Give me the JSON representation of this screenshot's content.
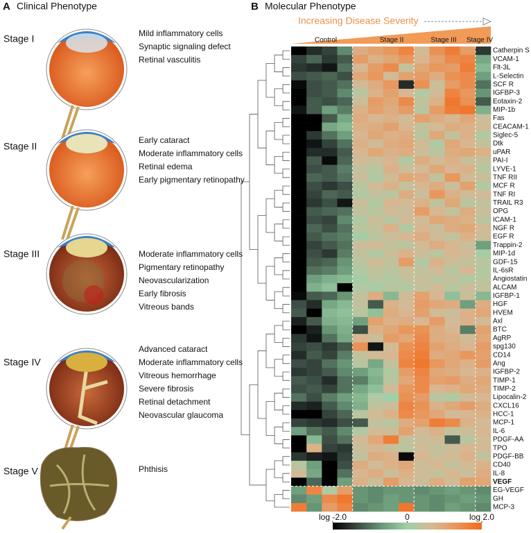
{
  "panel_a": {
    "letter": "A",
    "title": "Clinical Phenotype",
    "stages": [
      {
        "label": "Stage I",
        "findings": [
          "Mild inflammatory cells",
          "Synaptic signaling defect",
          "Retinal vasculitis"
        ]
      },
      {
        "label": "Stage II",
        "findings": [
          "Early cataract",
          "Moderate inflammatory cells",
          "Retinal edema",
          "Early pigmentary retinopathy"
        ]
      },
      {
        "label": "Stage III",
        "findings": [
          "Moderate inflammatory cells",
          "Pigmentary retinopathy",
          "Neovascularization",
          "Early fibrosis",
          "Vitreous bands"
        ]
      },
      {
        "label": "Stage IV",
        "findings": [
          "Advanced cataract",
          "Moderate inflammatory cells",
          "Vitreous hemorrhage",
          "Severe fibrosis",
          "Retinal detachment",
          "Neovascular glaucoma"
        ]
      },
      {
        "label": "Stage V",
        "findings": [
          "Phthisis"
        ]
      }
    ]
  },
  "chart_data": {
    "type": "heatmap",
    "letter": "B",
    "title": "Molecular Phenotype",
    "annotation": "Increasing Disease Severity",
    "groups": [
      "Control",
      "Stage II",
      "Stage III",
      "Stage IV"
    ],
    "rows": [
      "Catherpin S",
      "VCAM-1",
      "Flt-3L",
      "L-Selectin",
      "SCF R",
      "IGFBP-3",
      "Eotaxin-2",
      "MIP-1b",
      "Fas",
      "CEACAM-1",
      "Siglec-5",
      "Dtk",
      "uPAR",
      "PAI-I",
      "LYVE-1",
      "TNF RII",
      "MCF R",
      "TNF RI",
      "TRAIL R3",
      "OPG",
      "ICAM-1",
      "NGF R",
      "EGF R",
      "Trappin-2",
      "MIP-1d",
      "GDF-15",
      "IL-6sR",
      "Angiostatin",
      "ALCAM",
      "IGFBP-1",
      "HGF",
      "HVEM",
      "Axl",
      "BTC",
      "AgRP",
      "spg130",
      "CD14",
      "Ang",
      "IGFBP-2",
      "TIMP-1",
      "TIMP-2",
      "Lipocalin-2",
      "CXCL16",
      "HCC-1",
      "MCP-1",
      "IL-6",
      "PDGF-AA",
      "TPO",
      "PDGF-BB",
      "CD40",
      "IL-8",
      "VEGF",
      "EG-VEGF",
      "GH",
      "MCP-3"
    ],
    "values": [
      [
        -2,
        -1.6,
        -1.4,
        -0.8,
        0.9,
        1.1,
        1.3,
        1.6,
        0.6,
        1.4,
        1.7,
        1.2,
        -1.5
      ],
      [
        -1.4,
        -1.1,
        -1.5,
        -1.2,
        1.2,
        0.8,
        1.0,
        1.3,
        0.7,
        1.1,
        1.5,
        1.6,
        -0.5
      ],
      [
        -1.5,
        -1.6,
        -1.8,
        -1.0,
        0.7,
        1.2,
        1.5,
        0.4,
        1.0,
        1.3,
        1.2,
        1.7,
        -0.3
      ],
      [
        -1.3,
        -1.2,
        -1.1,
        -1.3,
        1.0,
        1.3,
        0.6,
        1.1,
        1.2,
        0.9,
        1.4,
        1.5,
        -0.6
      ],
      [
        -1.9,
        -1.3,
        -1.2,
        -1.0,
        0.6,
        0.9,
        1.3,
        -1.6,
        1.4,
        0.5,
        1.2,
        1.5,
        -1.0
      ],
      [
        -2,
        -1.3,
        -1.2,
        -0.8,
        0.3,
        0.8,
        1.1,
        0.7,
        0.2,
        0.6,
        1.6,
        1.3,
        -0.7
      ],
      [
        -2,
        -1.2,
        -1.3,
        -1.1,
        0.5,
        1.2,
        1.0,
        1.5,
        0.4,
        0.8,
        1.8,
        1.4,
        -1.2
      ],
      [
        -1.8,
        -1.2,
        -0.6,
        -0.9,
        0.8,
        1.1,
        0.9,
        1.2,
        0.3,
        1.2,
        1.7,
        1.8,
        -0.4
      ],
      [
        -2,
        -2,
        -1.2,
        -0.5,
        0.9,
        0.7,
        0.8,
        0.6,
        1.1,
        0.9,
        0.7,
        1.0,
        0.5
      ],
      [
        -2,
        -2,
        -0.5,
        -0.3,
        0.8,
        0.9,
        1.1,
        0.7,
        0.4,
        0.6,
        0.9,
        0.8,
        0.6
      ],
      [
        -2,
        -1.5,
        -1.0,
        -0.6,
        0.7,
        1.0,
        0.8,
        0.9,
        0.3,
        1.0,
        0.4,
        0.8,
        0.2
      ],
      [
        -2,
        -1.8,
        -1.4,
        -1.0,
        0.8,
        0.6,
        0.9,
        1.0,
        0.6,
        0.2,
        1.0,
        0.7,
        0.4
      ],
      [
        -2,
        -1.6,
        -1.6,
        -1.2,
        0.7,
        1.0,
        0.8,
        0.9,
        0.5,
        0.3,
        0.9,
        1.0,
        0.8
      ],
      [
        -2,
        -1.2,
        -1.9,
        -1.1,
        0.6,
        0.5,
        0.7,
        0.2,
        0.9,
        0.6,
        0.8,
        0.5,
        0.4
      ],
      [
        -2,
        -1.3,
        -1.2,
        -0.9,
        0.4,
        0.3,
        0.8,
        0.5,
        0.6,
        1.0,
        0.7,
        0.8,
        0.3
      ],
      [
        -2,
        -1.1,
        -1.2,
        -1.0,
        0.5,
        0.2,
        0.6,
        1.0,
        0.9,
        0.4,
        1.3,
        0.6,
        0.5
      ],
      [
        -2,
        -1.3,
        -1.5,
        -1.3,
        0.3,
        0.6,
        0.8,
        0.4,
        0.7,
        0.9,
        0.5,
        1.1,
        0.2
      ],
      [
        -2,
        -1.4,
        -1.1,
        -1.2,
        0.2,
        0.4,
        0.3,
        0.9,
        0.5,
        1.3,
        0.8,
        0.6,
        0.6
      ],
      [
        -2,
        -1.5,
        -1.3,
        -1.8,
        0.5,
        0.2,
        0.7,
        0.6,
        0.8,
        0.4,
        1.0,
        0.3,
        0.4
      ],
      [
        -2,
        -1.2,
        -1.1,
        -1.0,
        0.4,
        0.3,
        0.6,
        0.5,
        1.2,
        0.7,
        0.4,
        0.9,
        0.5
      ],
      [
        -2,
        -1.3,
        -1.4,
        -0.8,
        0.2,
        0.5,
        0.3,
        0.6,
        0.6,
        1.0,
        0.9,
        0.8,
        0.3
      ],
      [
        -2,
        -1.1,
        -1.3,
        -1.0,
        0.3,
        0.4,
        0.8,
        0.2,
        0.7,
        0.5,
        0.9,
        1.0,
        0.6
      ],
      [
        -2,
        -1.2,
        -1.0,
        -0.9,
        0.1,
        0.3,
        0.5,
        0.7,
        0.9,
        0.6,
        0.4,
        0.8,
        0.5
      ],
      [
        -2,
        -1.4,
        -1.2,
        -1.0,
        0.5,
        0.6,
        0.4,
        0.3,
        0.6,
        0.9,
        0.7,
        0.5,
        -0.6
      ],
      [
        -2,
        -1.3,
        -1.5,
        -0.9,
        0.4,
        0.2,
        0.5,
        0.8,
        0.5,
        0.3,
        0.7,
        0.6,
        0.1
      ],
      [
        -2,
        -1.2,
        -1.1,
        -0.7,
        0.3,
        0.6,
        0.4,
        1.2,
        0.2,
        0.8,
        0.5,
        0.4,
        0.3
      ],
      [
        -2,
        -1.0,
        -0.9,
        -0.6,
        0.2,
        0.4,
        0.3,
        0.5,
        0.4,
        0.6,
        0.3,
        0.7,
        0.2
      ],
      [
        -2,
        -0.6,
        -0.4,
        -0.3,
        0.1,
        0.3,
        0.2,
        0.4,
        0.5,
        0.3,
        0.4,
        0.2,
        0.3
      ],
      [
        -2,
        -0.4,
        -0.2,
        -2,
        0.2,
        0.1,
        0.3,
        0.2,
        0.4,
        0.6,
        0.3,
        0.5,
        0.4
      ],
      [
        -1.9,
        -1.2,
        -1.1,
        -0.7,
        0.4,
        0.9,
        -0.3,
        0.6,
        1.1,
        0.7,
        -0.2,
        0.5,
        -0.3
      ],
      [
        -1.3,
        -1.6,
        -0.5,
        -0.3,
        0.4,
        -1.2,
        0.8,
        0.6,
        1.2,
        1.0,
        0.9,
        -0.6,
        0.9
      ],
      [
        -1.2,
        -2,
        -0.3,
        -0.2,
        0.3,
        -0.2,
        0.9,
        0.7,
        1.1,
        0.6,
        0.5,
        0.8,
        1.0
      ],
      [
        -1.7,
        -1.2,
        -0.4,
        -0.3,
        -0.6,
        1.1,
        0.8,
        0.9,
        0.7,
        1.2,
        0.6,
        0.8,
        0.6
      ],
      [
        -2,
        -1.7,
        -0.7,
        -0.4,
        -1.3,
        0.8,
        1.0,
        1.3,
        1.4,
        0.9,
        0.7,
        -0.9,
        1.1
      ],
      [
        -1.5,
        -1.8,
        -1.0,
        -0.5,
        0.7,
        0.5,
        1.2,
        1.0,
        1.5,
        0.9,
        0.8,
        0.6,
        1.0
      ],
      [
        -1.4,
        -1.3,
        -1.5,
        -1.2,
        1.4,
        -1.8,
        0.6,
        1.4,
        1.6,
        1.1,
        0.9,
        0.7,
        1.2
      ],
      [
        -1.6,
        -1.2,
        -1.4,
        -0.9,
        0.4,
        0.6,
        0.7,
        1.5,
        1.7,
        0.9,
        1.0,
        1.3,
        1.1
      ],
      [
        -1.3,
        -1.4,
        -1.0,
        -0.7,
        0.3,
        -0.5,
        0.4,
        1.6,
        1.8,
        1.3,
        1.0,
        0.8,
        1.2
      ],
      [
        -1.5,
        -1.4,
        -1.2,
        -0.8,
        -0.6,
        -0.3,
        0.2,
        1.2,
        1.6,
        1.0,
        0.9,
        0.7,
        0.8
      ],
      [
        -1.2,
        -1.3,
        -1.6,
        -1.0,
        -0.9,
        -0.4,
        0.3,
        1.0,
        1.5,
        1.1,
        1.2,
        0.9,
        1.0
      ],
      [
        -1.3,
        -1.2,
        -1.4,
        -1.0,
        -0.5,
        -0.2,
        0.6,
        1.3,
        1.5,
        0.7,
        0.8,
        1.0,
        0.9
      ],
      [
        -1.0,
        -1.3,
        -0.9,
        -0.6,
        -0.3,
        0.2,
        0.0,
        1.4,
        1.2,
        0.3,
        0.2,
        0.6,
        0.7
      ],
      [
        -1.6,
        -1.7,
        -1.2,
        -0.8,
        -0.4,
        0.4,
        0.5,
        1.6,
        1.4,
        0.8,
        1.0,
        1.2,
        0.9
      ],
      [
        -2,
        -2,
        -1.4,
        -1.1,
        0.3,
        0.6,
        0.8,
        1.5,
        1.3,
        1.0,
        0.6,
        0.7,
        0.8
      ],
      [
        -1.4,
        -1.5,
        -1.6,
        -1.3,
        -1.2,
        0.4,
        0.3,
        0.9,
        1.1,
        1.7,
        1.5,
        0.8,
        0.6
      ],
      [
        -0.6,
        -1.0,
        -1.2,
        -0.8,
        0.2,
        0.6,
        0.5,
        1.1,
        0.6,
        0.8,
        0.4,
        0.5,
        0.7
      ],
      [
        -2,
        -0.3,
        -1.3,
        -1.0,
        0.6,
        1.0,
        1.7,
        0.4,
        0.5,
        0.6,
        -1.2,
        0.3,
        0.6
      ],
      [
        -2,
        0.8,
        -1.4,
        -1.5,
        0.5,
        0.7,
        0.5,
        0.3,
        0.6,
        0.4,
        0.5,
        0.7,
        0.6
      ],
      [
        -1.5,
        -1.7,
        -1.8,
        -1.4,
        0.4,
        0.9,
        0.8,
        -1.9,
        0.7,
        0.5,
        0.6,
        0.8,
        0.4
      ],
      [
        0.3,
        -0.6,
        -2,
        -1.3,
        0.9,
        0.6,
        0.8,
        1.0,
        0.5,
        0.7,
        0.4,
        0.6,
        0.8
      ],
      [
        0.6,
        -0.5,
        -2,
        -1.0,
        0.7,
        0.9,
        0.5,
        0.8,
        0.6,
        0.4,
        0.7,
        0.5,
        0.9
      ],
      [
        -2,
        -1.1,
        -2,
        -0.6,
        0.8,
        0.5,
        1.2,
        0.7,
        0.5,
        0.9,
        0.6,
        1.1,
        1.0
      ],
      [
        -0.6,
        1.6,
        0.2,
        1.2,
        -0.7,
        -0.8,
        -0.7,
        -0.7,
        -0.8,
        -0.7,
        -0.6,
        -0.7,
        -0.8
      ],
      [
        -0.8,
        -0.6,
        1.5,
        1.8,
        -0.7,
        -0.8,
        -0.6,
        -0.7,
        -0.7,
        -0.8,
        -0.7,
        -0.6,
        -0.7
      ],
      [
        1.7,
        -0.7,
        1.2,
        1.6,
        -0.8,
        -0.7,
        -0.6,
        1.8,
        -0.7,
        -0.8,
        -0.6,
        -0.7,
        -0.8
      ]
    ],
    "zlim": [
      -2,
      2
    ],
    "zticks": [
      {
        "value": -2,
        "label": "log -2.0"
      },
      0,
      {
        "value": 2,
        "label": "log 2.0"
      }
    ],
    "colorscale": [
      "#000000",
      "#3a4a42",
      "#6a9a78",
      "#9fd0a8",
      "#d7b894",
      "#e9955a",
      "#f26a1b"
    ]
  }
}
